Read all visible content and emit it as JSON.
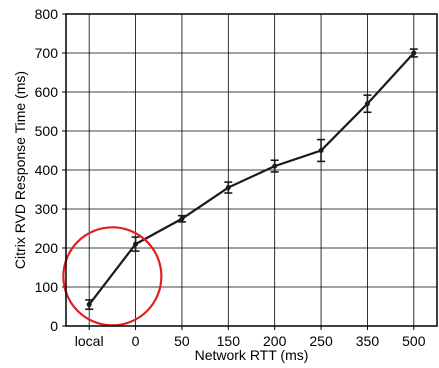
{
  "chart_data": {
    "type": "line",
    "xlabel": "Network RTT (ms)",
    "ylabel": "Citrix RVD Response Time (ms)",
    "categories": [
      "local",
      "0",
      "50",
      "150",
      "200",
      "250",
      "350",
      "500"
    ],
    "ylim": [
      0,
      800
    ],
    "yticks": [
      0,
      100,
      200,
      300,
      400,
      500,
      600,
      700,
      800
    ],
    "grid": true,
    "series": [
      {
        "values": [
          55,
          210,
          275,
          355,
          410,
          450,
          570,
          700
        ],
        "errors": [
          12,
          18,
          8,
          14,
          15,
          28,
          22,
          10
        ],
        "color": "#1a1a1a"
      }
    ],
    "annotation": {
      "shape": "circle",
      "color": "#e02020",
      "around_categories": [
        "local",
        "0"
      ]
    }
  }
}
